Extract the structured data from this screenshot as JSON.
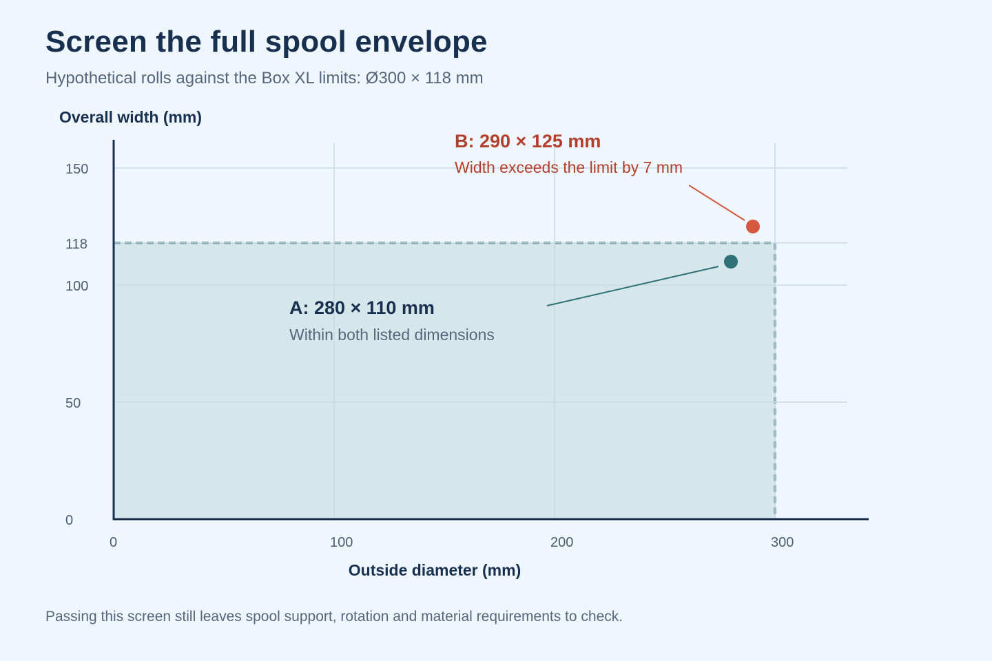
{
  "title": "Screen the full spool envelope",
  "subtitle": "Hypothetical rolls against the Box XL limits: Ø300 × 118 mm",
  "footnote": "Passing this screen still leaves spool support, rotation and material requirements to check.",
  "colors": {
    "text_dark": "#17304f",
    "text_muted": "#55677c",
    "limit": "#2e7278",
    "limit_fill": "#d6e7eb",
    "pass": "#2e7278",
    "fail": "#d4573f",
    "fail_text": "#b3402c",
    "grid": "#c9d8e3",
    "axis": "#17304f"
  },
  "chart_data": {
    "type": "scatter",
    "xlabel": "Outside diameter (mm)",
    "ylabel": "Overall width (mm)",
    "xlim": [
      0,
      340
    ],
    "ylim": [
      0,
      160
    ],
    "x_ticks": [
      0,
      100,
      200,
      300
    ],
    "y_ticks": [
      0,
      50,
      100,
      118,
      150
    ],
    "limit": {
      "diameter": 300,
      "width": 118
    },
    "points": [
      {
        "label": "A: 280 × 110 mm",
        "note": "Within both listed dimensions",
        "x": 280,
        "y": 110,
        "status": "pass"
      },
      {
        "label": "B: 290 × 125 mm",
        "note": "Width exceeds the limit by 7 mm",
        "x": 290,
        "y": 125,
        "status": "fail"
      }
    ]
  }
}
